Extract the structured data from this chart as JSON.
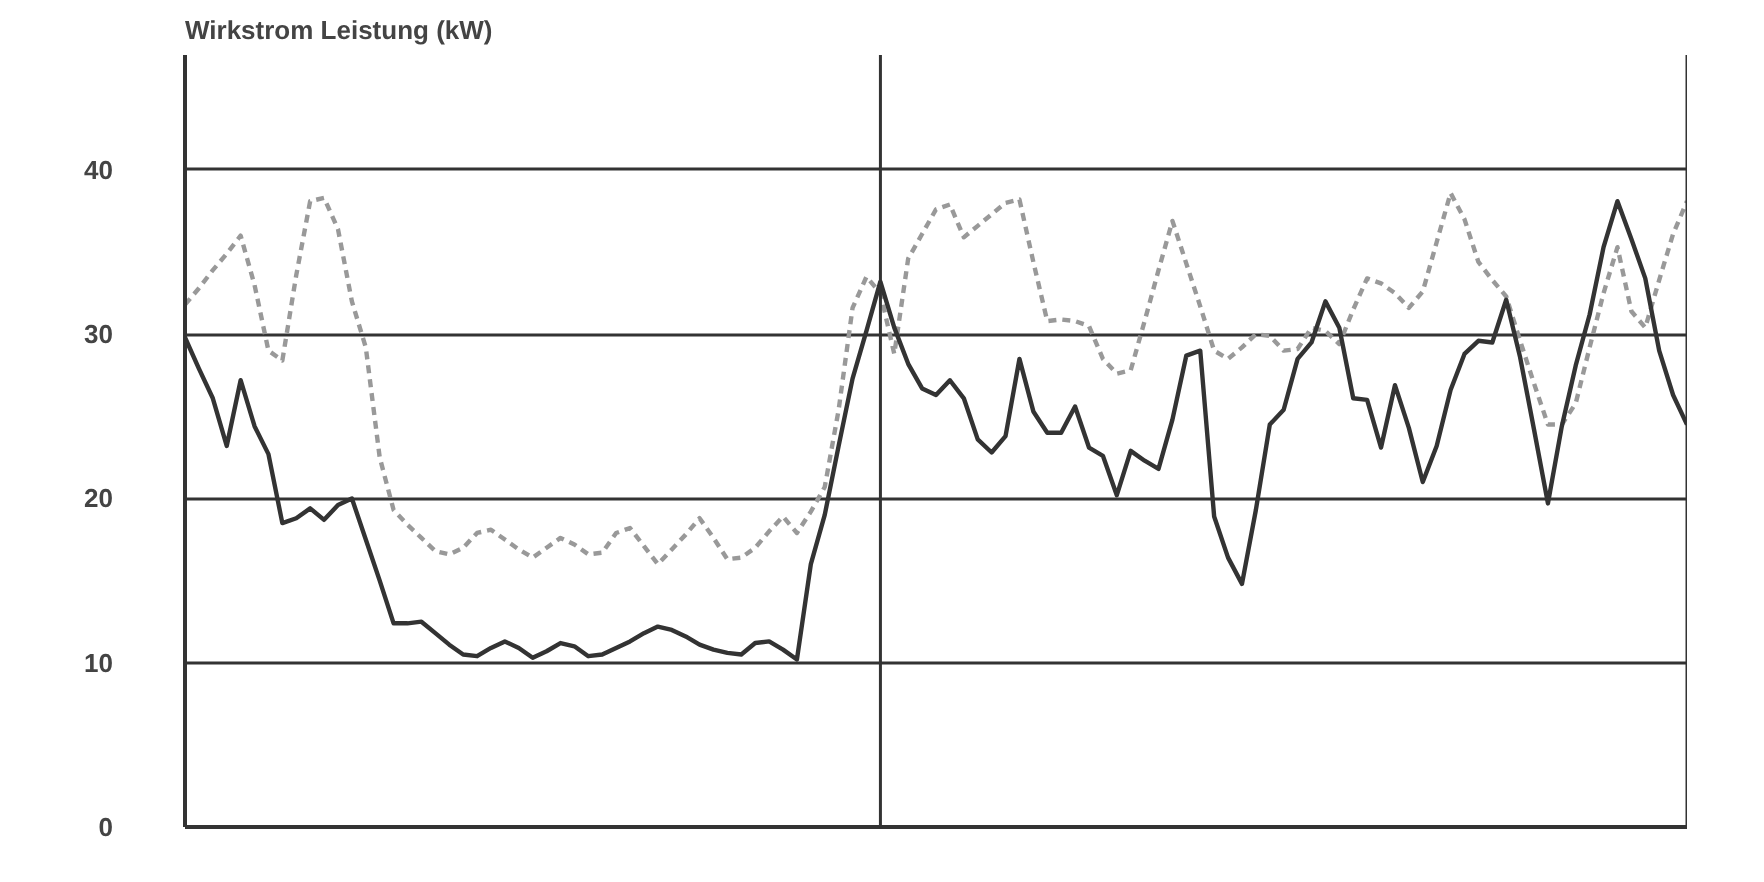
{
  "chart_data": {
    "type": "line",
    "title": "Wirkstrom Leistung (kW)",
    "categories": [
      null,
      null,
      null,
      null,
      null,
      null,
      null,
      null,
      null,
      null,
      null,
      null,
      null,
      null,
      null,
      null,
      null,
      null,
      null,
      null,
      null,
      null,
      null,
      null,
      null,
      null,
      null,
      null,
      null,
      null,
      null,
      null,
      null,
      null,
      null,
      null,
      null,
      null,
      null,
      null,
      null,
      null,
      null,
      null,
      null,
      null,
      null,
      null,
      null,
      null,
      null,
      null,
      null,
      null,
      null,
      null,
      null,
      null,
      null,
      null,
      null,
      null,
      null,
      null,
      null,
      null,
      null,
      null,
      null,
      null,
      null,
      null,
      null,
      null,
      null,
      null,
      null,
      null,
      null,
      null,
      null,
      null,
      null,
      null,
      null,
      null,
      null,
      null,
      null,
      null,
      null,
      null,
      null,
      null,
      null,
      null,
      null,
      null,
      null,
      null,
      null,
      null,
      null,
      null,
      null,
      null,
      null,
      null,
      null
    ],
    "ylim": [
      0,
      47
    ],
    "yticks": [
      0,
      10,
      20,
      30,
      40
    ],
    "tick_labels": "y",
    "grid": "y",
    "series": [
      {
        "color": "#999999",
        "line_style": "dashed",
        "values": [
          31.8,
          32.8,
          33.9,
          34.9,
          36.0,
          33.0,
          29.0,
          28.4,
          33.6,
          38.1,
          38.3,
          36.4,
          32.0,
          29.2,
          22.5,
          19.3,
          18.4,
          17.6,
          16.8,
          16.6,
          17.0,
          17.9,
          18.1,
          17.5,
          16.9,
          16.4,
          17.0,
          17.6,
          17.2,
          16.6,
          16.7,
          17.9,
          18.2,
          17.1,
          16.0,
          16.9,
          17.8,
          18.8,
          17.6,
          16.3,
          16.4,
          17.0,
          18.0,
          18.9,
          17.9,
          19.2,
          20.7,
          25.4,
          31.6,
          33.5,
          32.5,
          28.8,
          34.6,
          36.1,
          37.6,
          37.9,
          35.9,
          36.6,
          37.3,
          38.0,
          38.2,
          34.4,
          30.8,
          30.9,
          30.8,
          30.5,
          28.5,
          27.6,
          27.8,
          30.8,
          33.9,
          36.9,
          34.3,
          31.7,
          29.0,
          28.5,
          29.2,
          30.0,
          29.9,
          29.0,
          29.1,
          30.4,
          30.2,
          29.4,
          31.5,
          33.4,
          33.1,
          32.5,
          31.6,
          32.6,
          35.6,
          38.6,
          37.0,
          34.4,
          33.3,
          32.3,
          29.6,
          27.0,
          24.5,
          24.5,
          25.8,
          29.2,
          32.5,
          35.3,
          31.4,
          30.4,
          33.3,
          36.1,
          38.1
        ]
      },
      {
        "color": "#333333",
        "line_style": "solid",
        "values": [
          29.8,
          27.9,
          26.1,
          23.2,
          27.2,
          24.4,
          22.7,
          18.5,
          18.8,
          19.4,
          18.7,
          19.6,
          20.0,
          17.5,
          15.0,
          12.4,
          12.4,
          12.5,
          11.8,
          11.1,
          10.5,
          10.4,
          10.9,
          11.3,
          10.9,
          10.3,
          10.7,
          11.2,
          11.0,
          10.4,
          10.5,
          10.9,
          11.3,
          11.8,
          12.2,
          12.0,
          11.6,
          11.1,
          10.8,
          10.6,
          10.5,
          11.2,
          11.3,
          10.8,
          10.2,
          16.0,
          19.0,
          23.2,
          27.3,
          30.2,
          33.2,
          30.4,
          28.2,
          26.7,
          26.3,
          27.2,
          26.1,
          23.6,
          22.8,
          23.8,
          28.5,
          25.3,
          24.0,
          24.0,
          25.6,
          23.1,
          22.6,
          20.2,
          22.9,
          22.3,
          21.8,
          24.8,
          28.7,
          29.0,
          18.9,
          16.4,
          14.8,
          19.3,
          24.5,
          25.4,
          28.5,
          29.5,
          32.0,
          30.4,
          26.1,
          26.0,
          23.1,
          26.9,
          24.3,
          21.0,
          23.2,
          26.6,
          28.8,
          29.6,
          29.5,
          32.1,
          28.6,
          24.2,
          19.7,
          24.4,
          28.1,
          31.2,
          35.3,
          38.1,
          35.8,
          33.4,
          29.0,
          26.3,
          24.5
        ]
      }
    ]
  }
}
